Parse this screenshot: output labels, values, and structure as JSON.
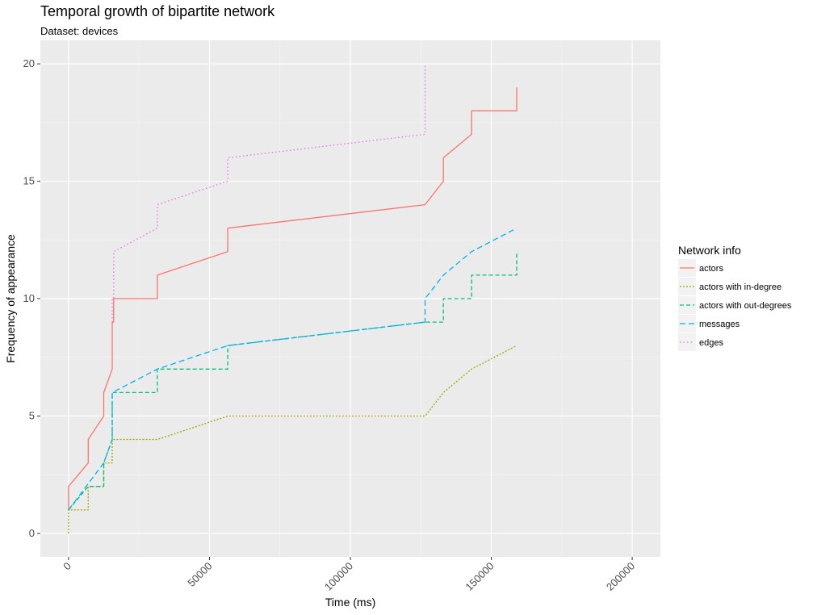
{
  "chart_data": {
    "type": "line",
    "title": "Temporal growth of bipartite network",
    "subtitle": "Dataset: devices",
    "xlabel": "Time (ms)",
    "ylabel": "Frequency of appearance",
    "xlim": [
      -10000,
      210000
    ],
    "ylim": [
      -1,
      21
    ],
    "x_ticks": [
      0,
      50000,
      100000,
      150000,
      200000
    ],
    "x_tick_labels": [
      "0",
      "50000",
      "100000",
      "150000",
      "200000"
    ],
    "y_ticks": [
      0,
      5,
      10,
      15,
      20
    ],
    "y_tick_labels": [
      "0",
      "5",
      "10",
      "15",
      "20"
    ],
    "grid": true,
    "legend": {
      "title": "Network info",
      "position": "right"
    },
    "series": [
      {
        "name": "actors",
        "color": "#F8766D",
        "dash": "solid",
        "x": [
          0,
          0,
          7000,
          7000,
          12500,
          12500,
          15500,
          15500,
          16000,
          16000,
          31500,
          31500,
          56500,
          56500,
          126500,
          133000,
          133000,
          143000,
          143000,
          159000,
          159000
        ],
        "y": [
          1,
          2,
          3,
          4,
          5,
          6,
          7,
          9,
          9,
          10,
          10,
          11,
          12,
          13,
          14,
          15,
          16,
          17,
          18,
          18,
          19
        ]
      },
      {
        "name": "actors with in-degree",
        "color": "#A3A500",
        "dash": "dotted-short",
        "x": [
          0,
          0,
          7000,
          7000,
          12500,
          12500,
          15500,
          15500,
          16000,
          31500,
          56500,
          126500,
          133000,
          143000,
          159000
        ],
        "y": [
          0,
          1,
          1,
          2,
          2,
          3,
          3,
          4,
          4,
          4,
          5,
          5,
          6,
          7,
          8
        ]
      },
      {
        "name": "actors with out-degrees",
        "color": "#00BF7D",
        "dash": "dashed",
        "x": [
          0,
          7000,
          7000,
          12500,
          12500,
          15500,
          15500,
          31500,
          31500,
          56500,
          56500,
          126500,
          133000,
          133000,
          143000,
          143000,
          159000,
          159000
        ],
        "y": [
          1,
          2,
          2,
          2,
          3,
          4,
          6,
          6,
          7,
          7,
          8,
          9,
          9,
          10,
          10,
          11,
          11,
          12
        ]
      },
      {
        "name": "messages",
        "color": "#00B0F6",
        "dash": "longdash",
        "x": [
          0,
          12500,
          15500,
          15500,
          31500,
          56500,
          126500,
          126500,
          133000,
          143000,
          159000
        ],
        "y": [
          1,
          3,
          4,
          6,
          7,
          8,
          9,
          10,
          11,
          12,
          13
        ]
      },
      {
        "name": "edges",
        "color": "#E76BF3",
        "dash": "dotted",
        "x": [
          15500,
          15500,
          16000,
          16000,
          31500,
          31500,
          56500,
          56500,
          126500,
          126500
        ],
        "y": [
          9,
          10,
          10,
          12,
          13,
          14,
          15,
          16,
          17,
          20
        ]
      }
    ]
  }
}
